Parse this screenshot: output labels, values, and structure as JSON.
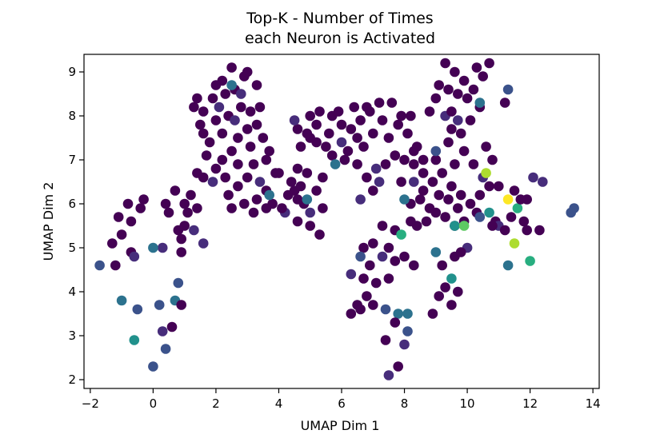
{
  "chart_data": {
    "type": "scatter",
    "title_lines": [
      "Top-K - Number of Times",
      "each Neuron is Activated"
    ],
    "xlabel": "UMAP Dim 1",
    "ylabel": "UMAP Dim 2",
    "xlim": [
      -2.2,
      14.2
    ],
    "ylim": [
      1.8,
      9.4
    ],
    "xticks": [
      -2,
      0,
      2,
      4,
      6,
      8,
      10,
      12,
      14
    ],
    "yticks": [
      2,
      3,
      4,
      5,
      6,
      7,
      8,
      9
    ],
    "grid": false,
    "legend": "none",
    "colormap": "viridis",
    "colors": {
      "0": "#440154",
      "1": "#472d7b",
      "2": "#3b528b",
      "3": "#2c728e",
      "4": "#21918c",
      "5": "#28ae80",
      "6": "#5ec962",
      "7": "#addc30",
      "8": "#fde725"
    },
    "points": [
      [
        2.2,
        8.8,
        0
      ],
      [
        2.5,
        9.1,
        0
      ],
      [
        2.9,
        8.9,
        0
      ],
      [
        3.0,
        9.0,
        0
      ],
      [
        2.0,
        8.7,
        0
      ],
      [
        1.9,
        8.4,
        0
      ],
      [
        2.3,
        8.5,
        0
      ],
      [
        2.6,
        8.6,
        0
      ],
      [
        3.3,
        8.7,
        0
      ],
      [
        3.4,
        8.2,
        0
      ],
      [
        2.8,
        8.2,
        0
      ],
      [
        1.6,
        8.1,
        0
      ],
      [
        1.5,
        7.8,
        0
      ],
      [
        2.0,
        7.9,
        0
      ],
      [
        2.2,
        7.6,
        0
      ],
      [
        2.4,
        8.0,
        0
      ],
      [
        2.7,
        7.5,
        0
      ],
      [
        3.0,
        7.7,
        0
      ],
      [
        3.3,
        7.8,
        0
      ],
      [
        3.5,
        7.5,
        0
      ],
      [
        3.1,
        7.3,
        0
      ],
      [
        2.5,
        7.2,
        0
      ],
      [
        2.2,
        7.0,
        0
      ],
      [
        2.7,
        6.9,
        0
      ],
      [
        3.2,
        6.9,
        0
      ],
      [
        3.6,
        7.0,
        0
      ],
      [
        3.0,
        6.6,
        0
      ],
      [
        2.7,
        6.4,
        0
      ],
      [
        2.4,
        6.2,
        0
      ],
      [
        2.9,
        6.0,
        0
      ],
      [
        3.3,
        6.1,
        0
      ],
      [
        3.6,
        6.3,
        0
      ],
      [
        3.8,
        6.0,
        0
      ],
      [
        2.5,
        5.9,
        0
      ],
      [
        3.2,
        5.8,
        0
      ],
      [
        3.6,
        5.9,
        0
      ],
      [
        1.8,
        7.4,
        0
      ],
      [
        1.4,
        8.4,
        0
      ],
      [
        1.3,
        8.2,
        0
      ],
      [
        1.6,
        7.6,
        0
      ],
      [
        2.6,
        7.9,
        1
      ],
      [
        2.8,
        8.5,
        1
      ],
      [
        3.1,
        8.1,
        0
      ],
      [
        2.1,
        8.2,
        1
      ],
      [
        3.9,
        6.7,
        0
      ],
      [
        3.7,
        7.2,
        0
      ],
      [
        1.7,
        7.1,
        0
      ],
      [
        2.0,
        6.8,
        0
      ],
      [
        2.3,
        6.6,
        0
      ],
      [
        3.4,
        6.5,
        1
      ],
      [
        2.5,
        8.7,
        3
      ],
      [
        3.7,
        6.2,
        3
      ],
      [
        1.4,
        5.9,
        0
      ],
      [
        1.1,
        5.8,
        0
      ],
      [
        1.0,
        5.5,
        0
      ],
      [
        0.8,
        5.4,
        0
      ],
      [
        0.5,
        5.8,
        0
      ],
      [
        0.9,
        5.2,
        0
      ],
      [
        1.3,
        5.4,
        1
      ],
      [
        1.6,
        5.1,
        1
      ],
      [
        0.7,
        6.3,
        0
      ],
      [
        1.0,
        6.0,
        0
      ],
      [
        1.2,
        6.2,
        0
      ],
      [
        1.6,
        6.6,
        0
      ],
      [
        1.9,
        6.5,
        1
      ],
      [
        1.4,
        6.7,
        0
      ],
      [
        0.4,
        6.0,
        0
      ],
      [
        -0.4,
        5.9,
        0
      ],
      [
        -0.7,
        5.6,
        0
      ],
      [
        -1.0,
        5.3,
        0
      ],
      [
        -1.3,
        5.1,
        0
      ],
      [
        -1.1,
        5.7,
        0
      ],
      [
        -0.8,
        6.0,
        0
      ],
      [
        -0.3,
        6.1,
        0
      ],
      [
        0.3,
        5.0,
        1
      ],
      [
        0.9,
        4.9,
        0
      ],
      [
        -0.7,
        4.9,
        0
      ],
      [
        -1.2,
        4.6,
        0
      ],
      [
        -1.7,
        4.6,
        2
      ],
      [
        -0.6,
        4.8,
        1
      ],
      [
        0.8,
        4.2,
        2
      ],
      [
        0.0,
        5.0,
        3
      ],
      [
        -1.0,
        3.8,
        3
      ],
      [
        -0.5,
        3.6,
        2
      ],
      [
        0.2,
        3.7,
        2
      ],
      [
        0.7,
        3.8,
        3
      ],
      [
        0.9,
        3.7,
        0
      ],
      [
        0.6,
        3.2,
        0
      ],
      [
        0.3,
        3.1,
        1
      ],
      [
        0.4,
        2.7,
        2
      ],
      [
        0.0,
        2.3,
        2
      ],
      [
        -0.6,
        2.9,
        4
      ],
      [
        4.3,
        6.2,
        0
      ],
      [
        4.5,
        6.3,
        0
      ],
      [
        4.7,
        6.4,
        0
      ],
      [
        4.8,
        6.0,
        0
      ],
      [
        5.0,
        5.8,
        1
      ],
      [
        5.2,
        6.3,
        0
      ],
      [
        4.9,
        6.7,
        0
      ],
      [
        4.6,
        6.8,
        0
      ],
      [
        4.4,
        6.5,
        0
      ],
      [
        4.2,
        5.8,
        1
      ],
      [
        4.6,
        5.6,
        0
      ],
      [
        5.0,
        5.5,
        0
      ],
      [
        5.3,
        5.3,
        0
      ],
      [
        5.4,
        5.9,
        0
      ],
      [
        4.1,
        5.9,
        0
      ],
      [
        4.0,
        6.7,
        0
      ],
      [
        4.6,
        6.1,
        0
      ],
      [
        4.9,
        6.1,
        3
      ],
      [
        4.6,
        7.7,
        0
      ],
      [
        4.9,
        7.6,
        0
      ],
      [
        5.2,
        7.4,
        0
      ],
      [
        5.5,
        7.3,
        0
      ],
      [
        5.7,
        7.1,
        0
      ],
      [
        6.1,
        7.0,
        0
      ],
      [
        5.8,
        6.9,
        3
      ],
      [
        5.4,
        6.6,
        0
      ],
      [
        5.0,
        7.5,
        0
      ],
      [
        4.7,
        7.3,
        0
      ],
      [
        4.5,
        7.9,
        1
      ],
      [
        5.0,
        8.0,
        0
      ],
      [
        5.3,
        8.1,
        0
      ],
      [
        5.7,
        8.0,
        0
      ],
      [
        6.0,
        7.8,
        0
      ],
      [
        6.3,
        7.7,
        0
      ],
      [
        6.6,
        7.9,
        0
      ],
      [
        6.9,
        8.1,
        0
      ],
      [
        7.2,
        8.3,
        0
      ],
      [
        7.6,
        8.3,
        0
      ],
      [
        7.3,
        7.9,
        0
      ],
      [
        7.0,
        7.6,
        0
      ],
      [
        6.7,
        7.3,
        0
      ],
      [
        6.5,
        7.5,
        0
      ],
      [
        7.8,
        7.8,
        0
      ],
      [
        8.1,
        7.6,
        0
      ],
      [
        8.3,
        7.2,
        0
      ],
      [
        8.0,
        7.0,
        0
      ],
      [
        7.7,
        7.1,
        0
      ],
      [
        7.4,
        6.9,
        0
      ],
      [
        7.1,
        6.8,
        1
      ],
      [
        6.8,
        6.6,
        0
      ],
      [
        6.5,
        6.9,
        0
      ],
      [
        6.2,
        7.2,
        0
      ],
      [
        6.4,
        8.2,
        0
      ],
      [
        5.9,
        8.1,
        0
      ],
      [
        5.6,
        7.6,
        0
      ],
      [
        6.8,
        8.2,
        0
      ],
      [
        8.4,
        7.3,
        0
      ],
      [
        8.6,
        7.0,
        0
      ],
      [
        7.5,
        7.5,
        0
      ],
      [
        7.9,
        8.0,
        0
      ],
      [
        8.2,
        8.0,
        0
      ],
      [
        5.2,
        7.8,
        0
      ],
      [
        6.0,
        7.4,
        1
      ],
      [
        6.6,
        6.1,
        1
      ],
      [
        7.0,
        6.3,
        0
      ],
      [
        7.2,
        6.5,
        1
      ],
      [
        7.9,
        6.5,
        0
      ],
      [
        8.2,
        6.0,
        0
      ],
      [
        8.6,
        6.3,
        0
      ],
      [
        8.9,
        6.5,
        0
      ],
      [
        9.1,
        6.2,
        0
      ],
      [
        9.4,
        6.1,
        0
      ],
      [
        9.7,
        5.9,
        0
      ],
      [
        9.0,
        5.8,
        0
      ],
      [
        9.3,
        5.7,
        0
      ],
      [
        9.6,
        5.5,
        0
      ],
      [
        9.9,
        5.6,
        0
      ],
      [
        8.8,
        5.9,
        0
      ],
      [
        8.5,
        6.1,
        0
      ],
      [
        8.7,
        5.6,
        0
      ],
      [
        8.4,
        5.5,
        0
      ],
      [
        9.5,
        6.4,
        0
      ],
      [
        9.8,
        6.2,
        0
      ],
      [
        10.1,
        6.0,
        0
      ],
      [
        10.3,
        5.8,
        0
      ],
      [
        9.2,
        6.7,
        0
      ],
      [
        9.6,
        6.9,
        0
      ],
      [
        9.9,
        7.2,
        0
      ],
      [
        10.2,
        6.9,
        0
      ],
      [
        10.5,
        6.6,
        1
      ],
      [
        10.7,
        6.4,
        0
      ],
      [
        10.4,
        6.2,
        0
      ],
      [
        9.0,
        7.0,
        0
      ],
      [
        8.6,
        6.7,
        0
      ],
      [
        8.3,
        6.9,
        0
      ],
      [
        9.4,
        7.4,
        0
      ],
      [
        9.8,
        7.6,
        0
      ],
      [
        10.1,
        7.9,
        0
      ],
      [
        10.4,
        8.2,
        0
      ],
      [
        9.7,
        7.9,
        1
      ],
      [
        9.3,
        8.0,
        1
      ],
      [
        9.0,
        8.4,
        0
      ],
      [
        8.8,
        8.1,
        0
      ],
      [
        9.1,
        8.7,
        0
      ],
      [
        9.4,
        8.6,
        0
      ],
      [
        9.7,
        8.5,
        0
      ],
      [
        9.9,
        8.8,
        0
      ],
      [
        10.2,
        8.6,
        0
      ],
      [
        10.5,
        8.9,
        0
      ],
      [
        10.7,
        9.2,
        0
      ],
      [
        10.3,
        9.1,
        0
      ],
      [
        10.0,
        8.4,
        0
      ],
      [
        9.6,
        9.0,
        0
      ],
      [
        9.3,
        9.2,
        0
      ],
      [
        10.4,
        8.3,
        3
      ],
      [
        9.5,
        7.7,
        0
      ],
      [
        9.0,
        7.2,
        2
      ],
      [
        8.3,
        6.5,
        1
      ],
      [
        8.0,
        6.1,
        3
      ],
      [
        8.2,
        5.6,
        0
      ],
      [
        7.7,
        5.4,
        0
      ],
      [
        7.9,
        5.3,
        5
      ],
      [
        7.5,
        5.0,
        0
      ],
      [
        7.3,
        5.5,
        0
      ],
      [
        7.0,
        5.1,
        0
      ],
      [
        6.7,
        5.0,
        0
      ],
      [
        6.6,
        4.8,
        2
      ],
      [
        6.9,
        4.6,
        0
      ],
      [
        7.3,
        4.8,
        1
      ],
      [
        7.7,
        4.7,
        0
      ],
      [
        8.0,
        4.8,
        0
      ],
      [
        8.3,
        4.6,
        0
      ],
      [
        7.5,
        4.3,
        0
      ],
      [
        7.1,
        4.2,
        0
      ],
      [
        6.8,
        3.9,
        0
      ],
      [
        6.5,
        3.7,
        0
      ],
      [
        6.3,
        3.5,
        0
      ],
      [
        6.6,
        3.6,
        0
      ],
      [
        7.0,
        3.7,
        0
      ],
      [
        7.4,
        3.6,
        2
      ],
      [
        7.8,
        3.5,
        3
      ],
      [
        8.1,
        3.5,
        3
      ],
      [
        7.7,
        3.3,
        0
      ],
      [
        8.1,
        3.1,
        2
      ],
      [
        7.4,
        2.9,
        0
      ],
      [
        8.0,
        2.8,
        1
      ],
      [
        7.8,
        2.3,
        0
      ],
      [
        7.5,
        2.1,
        1
      ],
      [
        6.3,
        4.4,
        1
      ],
      [
        6.7,
        4.3,
        0
      ],
      [
        9.0,
        4.9,
        3
      ],
      [
        9.2,
        4.6,
        0
      ],
      [
        9.5,
        4.3,
        4
      ],
      [
        9.3,
        4.1,
        0
      ],
      [
        9.1,
        3.9,
        0
      ],
      [
        9.5,
        3.7,
        0
      ],
      [
        9.7,
        4.0,
        0
      ],
      [
        8.9,
        3.5,
        0
      ],
      [
        9.6,
        4.8,
        0
      ],
      [
        10.0,
        5.0,
        1
      ],
      [
        9.8,
        4.9,
        0
      ],
      [
        9.6,
        5.5,
        4
      ],
      [
        9.9,
        5.5,
        6
      ],
      [
        10.4,
        5.7,
        2
      ],
      [
        10.7,
        5.8,
        4
      ],
      [
        10.9,
        5.6,
        0
      ],
      [
        11.0,
        5.5,
        1
      ],
      [
        11.2,
        5.4,
        0
      ],
      [
        11.4,
        5.7,
        0
      ],
      [
        11.6,
        5.9,
        5
      ],
      [
        11.8,
        5.6,
        0
      ],
      [
        11.5,
        5.1,
        7
      ],
      [
        12.0,
        4.7,
        5
      ],
      [
        11.3,
        4.6,
        3
      ],
      [
        11.9,
        5.4,
        0
      ],
      [
        12.3,
        5.4,
        0
      ],
      [
        11.9,
        6.1,
        0
      ],
      [
        11.3,
        6.1,
        8
      ],
      [
        11.5,
        6.3,
        0
      ],
      [
        12.1,
        6.6,
        1
      ],
      [
        12.4,
        6.5,
        1
      ],
      [
        10.6,
        6.7,
        7
      ],
      [
        10.8,
        5.5,
        0
      ],
      [
        11.0,
        6.4,
        0
      ],
      [
        11.7,
        6.1,
        0
      ],
      [
        13.3,
        5.8,
        2
      ],
      [
        13.4,
        5.9,
        2
      ],
      [
        11.3,
        8.6,
        2
      ],
      [
        11.2,
        8.3,
        0
      ],
      [
        9.5,
        8.1,
        0
      ],
      [
        10.8,
        7.0,
        0
      ],
      [
        10.6,
        7.3,
        0
      ]
    ]
  }
}
